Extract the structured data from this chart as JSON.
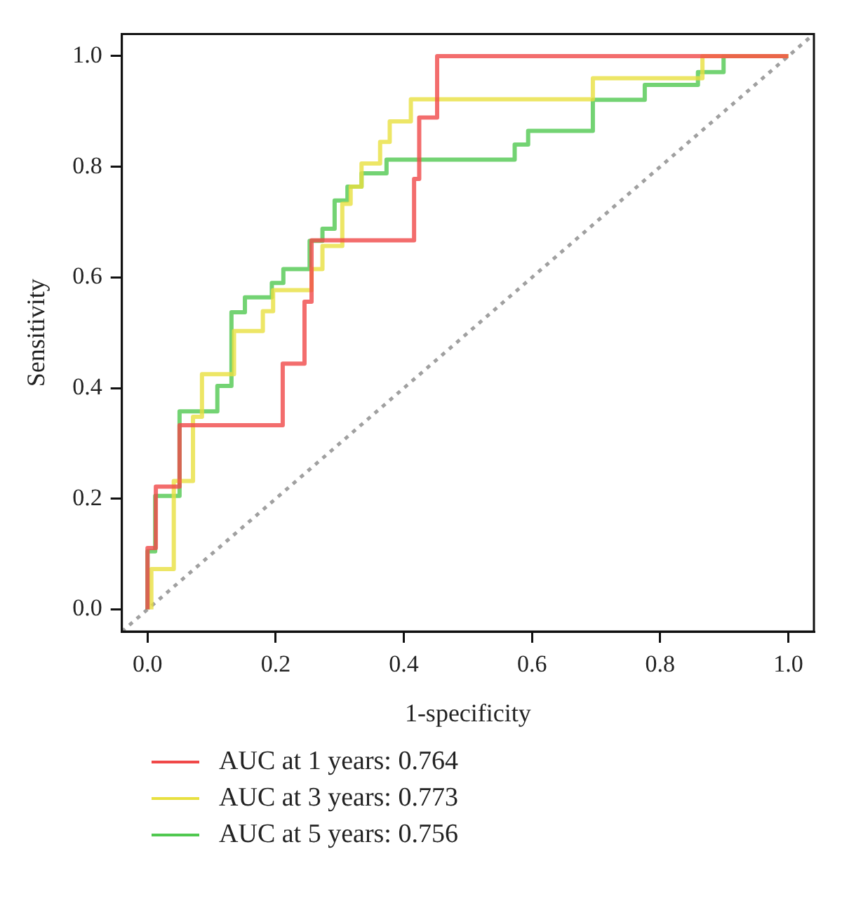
{
  "chart_data": {
    "type": "line",
    "xlabel": "1-specificity",
    "ylabel": "Sensitivity",
    "xlim": [
      -0.04,
      1.04
    ],
    "ylim": [
      -0.04,
      1.04
    ],
    "xticks": [
      {
        "value": 0,
        "label": "0.0"
      },
      0.2,
      0.4,
      0.6,
      0.8,
      {
        "value": 1,
        "label": "1.0"
      }
    ],
    "yticks": [
      {
        "value": 0,
        "label": "0.0"
      },
      0.2,
      0.4,
      0.6,
      0.8,
      {
        "value": 1,
        "label": "1.0"
      }
    ],
    "grid": false,
    "legend": "bottom",
    "marker": "none",
    "series": [
      {
        "name": "AUC at 1 years: 0.764",
        "color": "#f04848",
        "x": [
          0,
          0,
          0.013,
          0.013,
          0.05,
          0.05,
          0.211,
          0.211,
          0.245,
          0.245,
          0.256,
          0.256,
          0.416,
          0.416,
          0.424,
          0.424,
          0.452,
          0.452,
          1
        ],
        "values": [
          0,
          0.111,
          0.111,
          0.222,
          0.222,
          0.333,
          0.333,
          0.444,
          0.444,
          0.556,
          0.556,
          0.667,
          0.667,
          0.778,
          0.778,
          0.889,
          0.889,
          1,
          1
        ]
      },
      {
        "name": "AUC at 3 years: 0.773",
        "color": "#e8e040",
        "x": [
          0.006,
          0.006,
          0.041,
          0.041,
          0.071,
          0.071,
          0.085,
          0.085,
          0.135,
          0.135,
          0.18,
          0.18,
          0.196,
          0.196,
          0.256,
          0.256,
          0.273,
          0.273,
          0.304,
          0.304,
          0.317,
          0.317,
          0.334,
          0.334,
          0.363,
          0.363,
          0.378,
          0.378,
          0.411,
          0.411,
          0.695,
          0.695,
          0.866,
          0.866,
          1
        ],
        "values": [
          0,
          0.073,
          0.073,
          0.232,
          0.232,
          0.348,
          0.348,
          0.425,
          0.425,
          0.503,
          0.503,
          0.539,
          0.539,
          0.577,
          0.577,
          0.615,
          0.615,
          0.657,
          0.657,
          0.733,
          0.733,
          0.764,
          0.764,
          0.806,
          0.806,
          0.845,
          0.845,
          0.882,
          0.882,
          0.922,
          0.922,
          0.96,
          0.96,
          1,
          1
        ]
      },
      {
        "name": "AUC at 5 years: 0.756",
        "color": "#50c850",
        "x": [
          0,
          0,
          0.012,
          0.012,
          0.05,
          0.05,
          0.109,
          0.109,
          0.131,
          0.131,
          0.152,
          0.152,
          0.194,
          0.194,
          0.212,
          0.212,
          0.253,
          0.253,
          0.273,
          0.273,
          0.292,
          0.292,
          0.312,
          0.312,
          0.334,
          0.334,
          0.373,
          0.373,
          0.573,
          0.573,
          0.594,
          0.594,
          0.695,
          0.695,
          0.776,
          0.776,
          0.859,
          0.859,
          0.899,
          0.899,
          1
        ],
        "values": [
          0,
          0.105,
          0.105,
          0.205,
          0.205,
          0.358,
          0.358,
          0.404,
          0.404,
          0.537,
          0.537,
          0.564,
          0.564,
          0.59,
          0.59,
          0.615,
          0.615,
          0.666,
          0.666,
          0.688,
          0.688,
          0.739,
          0.739,
          0.764,
          0.764,
          0.788,
          0.788,
          0.813,
          0.813,
          0.84,
          0.84,
          0.865,
          0.865,
          0.921,
          0.921,
          0.948,
          0.948,
          0.971,
          0.971,
          1,
          1
        ]
      },
      {
        "color": "#a0a0a0",
        "line_style": "dotted",
        "x": [
          -0.04,
          1.04
        ],
        "values": [
          -0.04,
          1.04
        ]
      }
    ]
  }
}
